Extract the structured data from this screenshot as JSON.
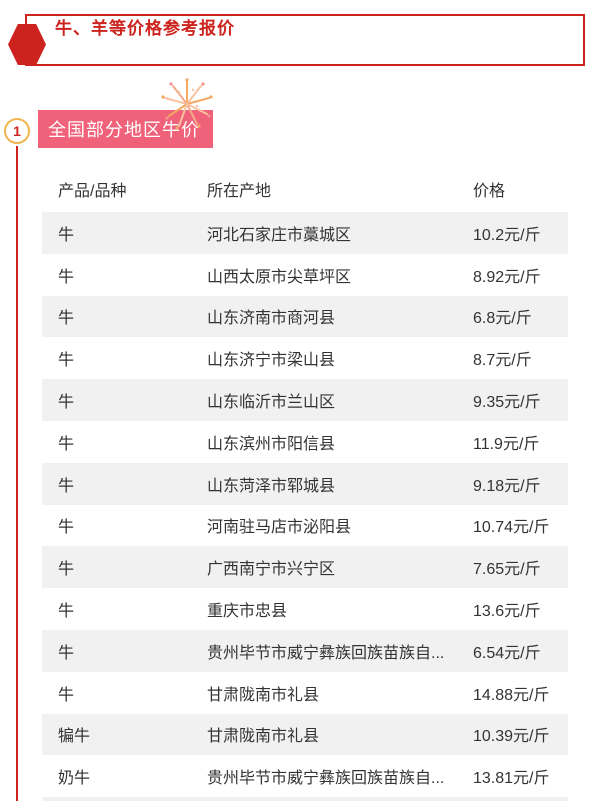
{
  "header": {
    "title": "牛、羊等价格参考报价",
    "accent_color": "#cd231e"
  },
  "section": {
    "index": "1",
    "badge_label": "全国部分地区牛价",
    "badge_color": "#f0617a",
    "circle_border_color": "#f0b54f"
  },
  "table": {
    "stripe_color": "#f1f1f1",
    "text_color": "#333333",
    "columns": {
      "product": "产品/品种",
      "origin": "所在产地",
      "price": "价格"
    },
    "rows": [
      {
        "product": "牛",
        "origin": "河北石家庄市藁城区",
        "price": "10.2元/斤"
      },
      {
        "product": "牛",
        "origin": "山西太原市尖草坪区",
        "price": "8.92元/斤"
      },
      {
        "product": "牛",
        "origin": "山东济南市商河县",
        "price": "6.8元/斤"
      },
      {
        "product": "牛",
        "origin": "山东济宁市梁山县",
        "price": "8.7元/斤"
      },
      {
        "product": "牛",
        "origin": "山东临沂市兰山区",
        "price": "9.35元/斤"
      },
      {
        "product": "牛",
        "origin": "山东滨州市阳信县",
        "price": "11.9元/斤"
      },
      {
        "product": "牛",
        "origin": "山东菏泽市郓城县",
        "price": "9.18元/斤"
      },
      {
        "product": "牛",
        "origin": "河南驻马店市泌阳县",
        "price": "10.74元/斤"
      },
      {
        "product": "牛",
        "origin": "广西南宁市兴宁区",
        "price": "7.65元/斤"
      },
      {
        "product": "牛",
        "origin": "重庆市忠县",
        "price": "13.6元/斤"
      },
      {
        "product": "牛",
        "origin": "贵州毕节市威宁彝族回族苗族自...",
        "price": "6.54元/斤"
      },
      {
        "product": "牛",
        "origin": "甘肃陇南市礼县",
        "price": "14.88元/斤"
      },
      {
        "product": "犏牛",
        "origin": "甘肃陇南市礼县",
        "price": "10.39元/斤"
      },
      {
        "product": "奶牛",
        "origin": "贵州毕节市威宁彝族回族苗族自...",
        "price": "13.81元/斤"
      }
    ]
  }
}
